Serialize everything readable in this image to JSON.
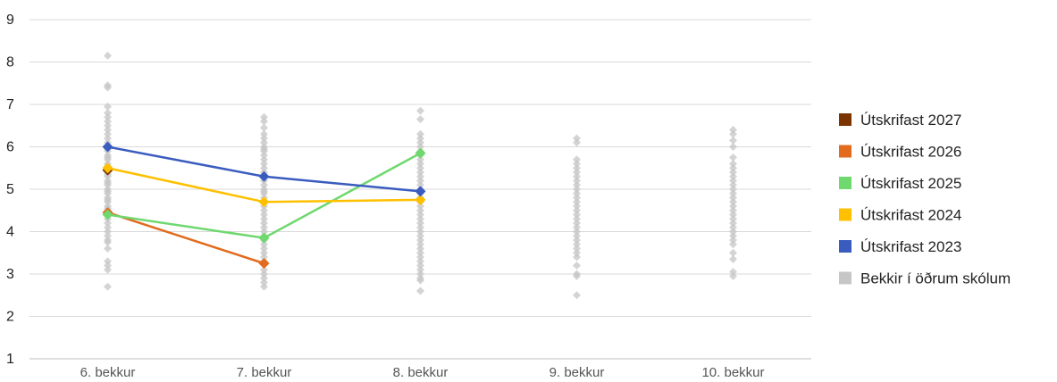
{
  "chart_data": {
    "type": "line",
    "categories": [
      "6. bekkur",
      "7. bekkur",
      "8. bekkur",
      "9. bekkur",
      "10. bekkur"
    ],
    "ylim": [
      1,
      9
    ],
    "yticks": [
      1,
      2,
      3,
      4,
      5,
      6,
      7,
      8,
      9
    ],
    "grid": true,
    "legend_position": "right",
    "series": [
      {
        "name": "Útskrifast 2027",
        "color": "#7b3300",
        "values": [
          5.45,
          null,
          null,
          null,
          null
        ]
      },
      {
        "name": "Útskrifast 2026",
        "color": "#e26b1e",
        "values": [
          4.45,
          3.25,
          null,
          null,
          null
        ]
      },
      {
        "name": "Útskrifast 2025",
        "color": "#6fd86f",
        "values": [
          4.4,
          3.85,
          5.85,
          null,
          null
        ]
      },
      {
        "name": "Útskrifast 2024",
        "color": "#ffc000",
        "values": [
          5.5,
          4.7,
          4.75,
          null,
          null
        ]
      },
      {
        "name": "Útskrifast 2023",
        "color": "#3a5cbf",
        "values": [
          6.0,
          5.3,
          4.95,
          null,
          null
        ]
      }
    ],
    "other_schools": {
      "name": "Bekkir í öðrum skólum",
      "color": "#c6c6c6",
      "values": [
        [
          8.15,
          7.45,
          7.4,
          6.95,
          6.8,
          6.7,
          6.6,
          6.5,
          6.4,
          6.3,
          6.2,
          6.1,
          6.0,
          5.95,
          5.9,
          5.8,
          5.75,
          5.7,
          5.6,
          5.55,
          5.5,
          5.4,
          5.35,
          5.3,
          5.2,
          5.15,
          5.1,
          5.0,
          4.95,
          4.9,
          4.8,
          4.75,
          4.7,
          4.6,
          4.55,
          4.5,
          4.4,
          4.3,
          4.2,
          4.1,
          4.0,
          3.9,
          3.8,
          3.75,
          3.6,
          3.3,
          3.2,
          3.1,
          2.7
        ],
        [
          6.7,
          6.6,
          6.45,
          6.3,
          6.2,
          6.1,
          6.0,
          5.95,
          5.9,
          5.8,
          5.7,
          5.6,
          5.5,
          5.4,
          5.3,
          5.2,
          5.1,
          5.0,
          4.95,
          4.9,
          4.8,
          4.7,
          4.6,
          4.5,
          4.4,
          4.3,
          4.2,
          4.1,
          4.0,
          3.9,
          3.8,
          3.7,
          3.6,
          3.5,
          3.4,
          3.3,
          3.1,
          3.0,
          2.9,
          2.8,
          2.7
        ],
        [
          6.85,
          6.65,
          6.3,
          6.2,
          6.1,
          6.0,
          5.9,
          5.8,
          5.7,
          5.6,
          5.5,
          5.4,
          5.3,
          5.2,
          5.1,
          5.0,
          4.9,
          4.8,
          4.7,
          4.6,
          4.5,
          4.4,
          4.3,
          4.2,
          4.1,
          4.0,
          3.9,
          3.8,
          3.7,
          3.6,
          3.5,
          3.4,
          3.3,
          3.2,
          3.1,
          3.0,
          2.9,
          2.85,
          2.6
        ],
        [
          6.2,
          6.1,
          5.7,
          5.6,
          5.5,
          5.4,
          5.3,
          5.2,
          5.1,
          5.0,
          4.9,
          4.8,
          4.7,
          4.6,
          4.5,
          4.4,
          4.3,
          4.2,
          4.1,
          4.0,
          3.9,
          3.8,
          3.7,
          3.6,
          3.5,
          3.4,
          3.2,
          3.0,
          2.95,
          2.5
        ],
        [
          6.4,
          6.3,
          6.15,
          6.0,
          5.75,
          5.6,
          5.5,
          5.4,
          5.3,
          5.2,
          5.1,
          5.0,
          4.9,
          4.8,
          4.7,
          4.6,
          4.5,
          4.4,
          4.3,
          4.2,
          4.1,
          4.0,
          3.9,
          3.8,
          3.7,
          3.5,
          3.35,
          3.05,
          2.95
        ]
      ]
    }
  }
}
